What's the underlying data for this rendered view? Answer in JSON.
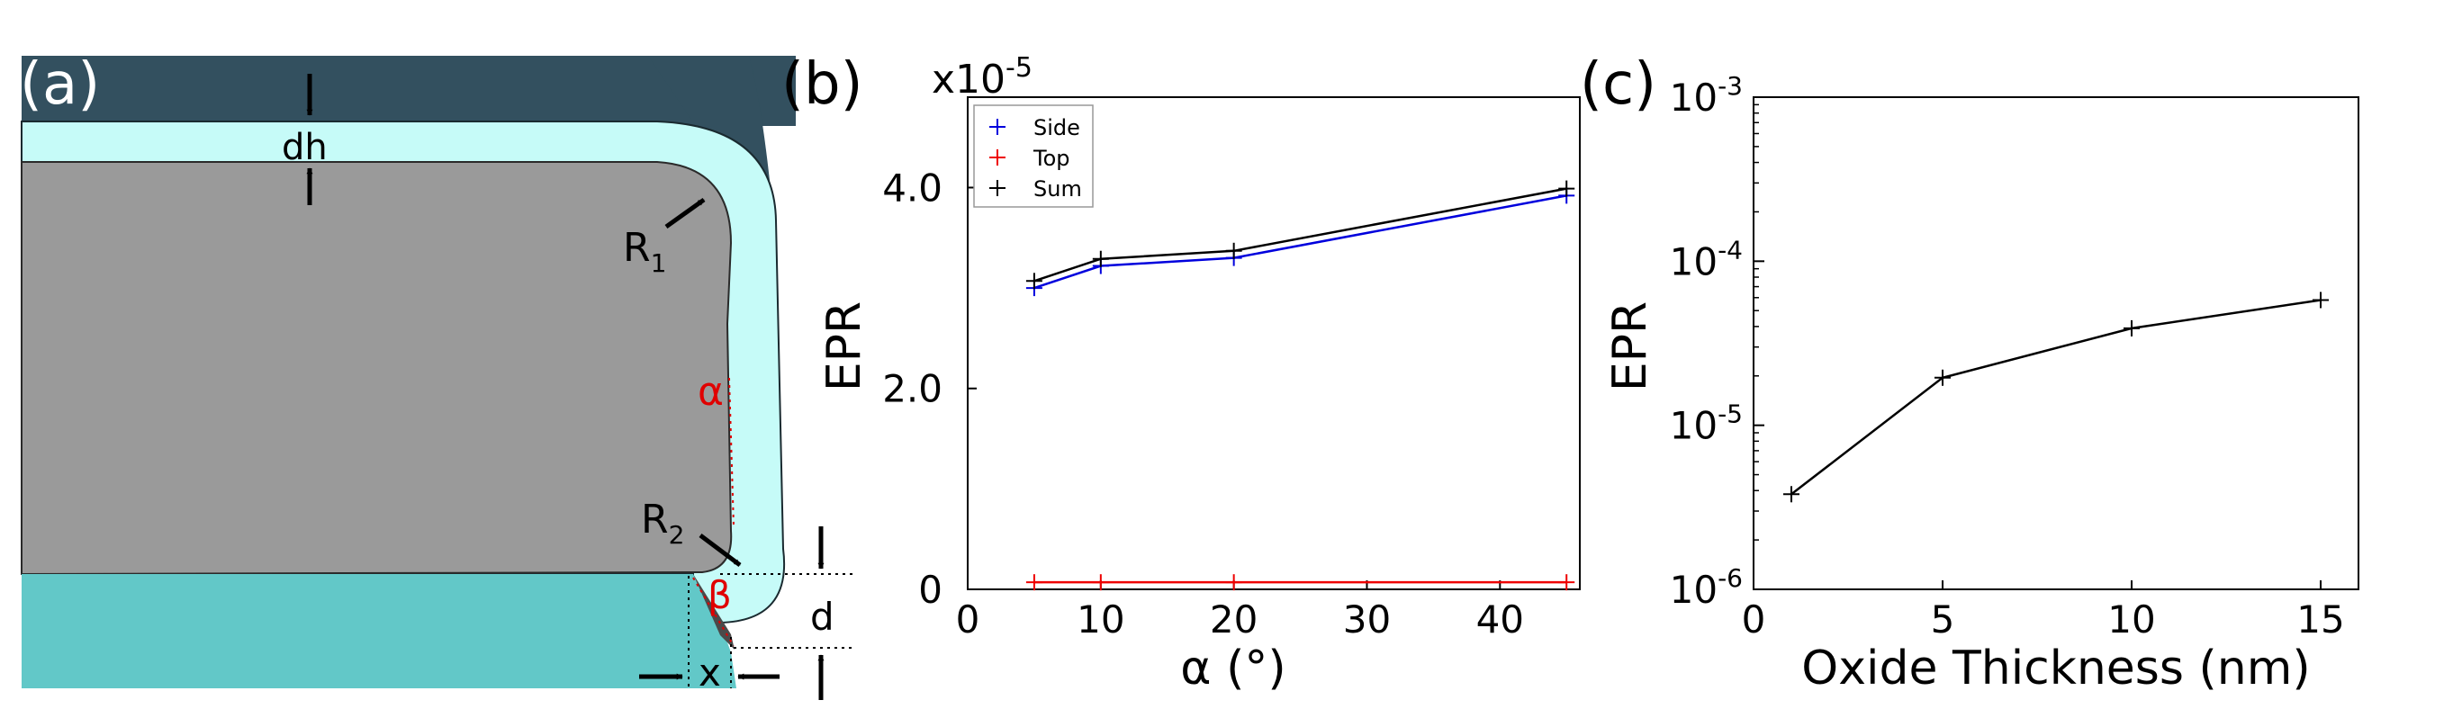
{
  "panels": {
    "a": {
      "label": "(a)"
    },
    "b": {
      "label": "(b)"
    },
    "c": {
      "label": "(c)"
    }
  },
  "diagram": {
    "dh": "dh",
    "r1_main": "R",
    "r1_sub": "1",
    "r2_main": "R",
    "r2_sub": "2",
    "alpha": "α",
    "beta": "β",
    "d": "d",
    "x": "x",
    "colors": {
      "top_dark": "#33505f",
      "oxide": "#c6fbf8",
      "metal": "#9a9a9a",
      "substrate": "#62c8c8",
      "accent": "#e00000"
    }
  },
  "chart_data": [
    {
      "panel": "b",
      "type": "line",
      "ylabel": "EPR",
      "xlabel": "α (°)",
      "y_multiplier_base": "x10",
      "y_multiplier_exp": "-5",
      "xlim": [
        0,
        46
      ],
      "ylim": [
        0,
        4.9
      ],
      "xticks": [
        0,
        10,
        20,
        30,
        40
      ],
      "yticks": [
        0,
        2.0,
        4.0
      ],
      "ytick_labels": [
        "0",
        "2.0",
        "4.0"
      ],
      "legend_position": "top-left",
      "x": [
        5,
        10,
        20,
        45
      ],
      "series": [
        {
          "name": "Side",
          "color": "#0000dd",
          "values": [
            3.0,
            3.22,
            3.3,
            3.92
          ]
        },
        {
          "name": "Top",
          "color": "#ee0000",
          "values": [
            0.07,
            0.07,
            0.07,
            0.07
          ]
        },
        {
          "name": "Sum",
          "color": "#000000",
          "values": [
            3.07,
            3.29,
            3.37,
            3.99
          ]
        }
      ]
    },
    {
      "panel": "c",
      "type": "line",
      "ylabel": "EPR",
      "xlabel": "Oxide Thickness (nm)",
      "y_scale": "log",
      "xlim": [
        0,
        16
      ],
      "ylim": [
        1e-06,
        0.001
      ],
      "xticks": [
        0,
        5,
        10,
        15
      ],
      "yticks": [
        {
          "base": "10",
          "exp": "-6"
        },
        {
          "base": "10",
          "exp": "-5"
        },
        {
          "base": "10",
          "exp": "-4"
        },
        {
          "base": "10",
          "exp": "-3"
        }
      ],
      "x": [
        1,
        5,
        10,
        15
      ],
      "series": [
        {
          "color": "#000000",
          "values": [
            3.8e-06,
            1.95e-05,
            3.9e-05,
            5.8e-05
          ]
        }
      ]
    }
  ]
}
